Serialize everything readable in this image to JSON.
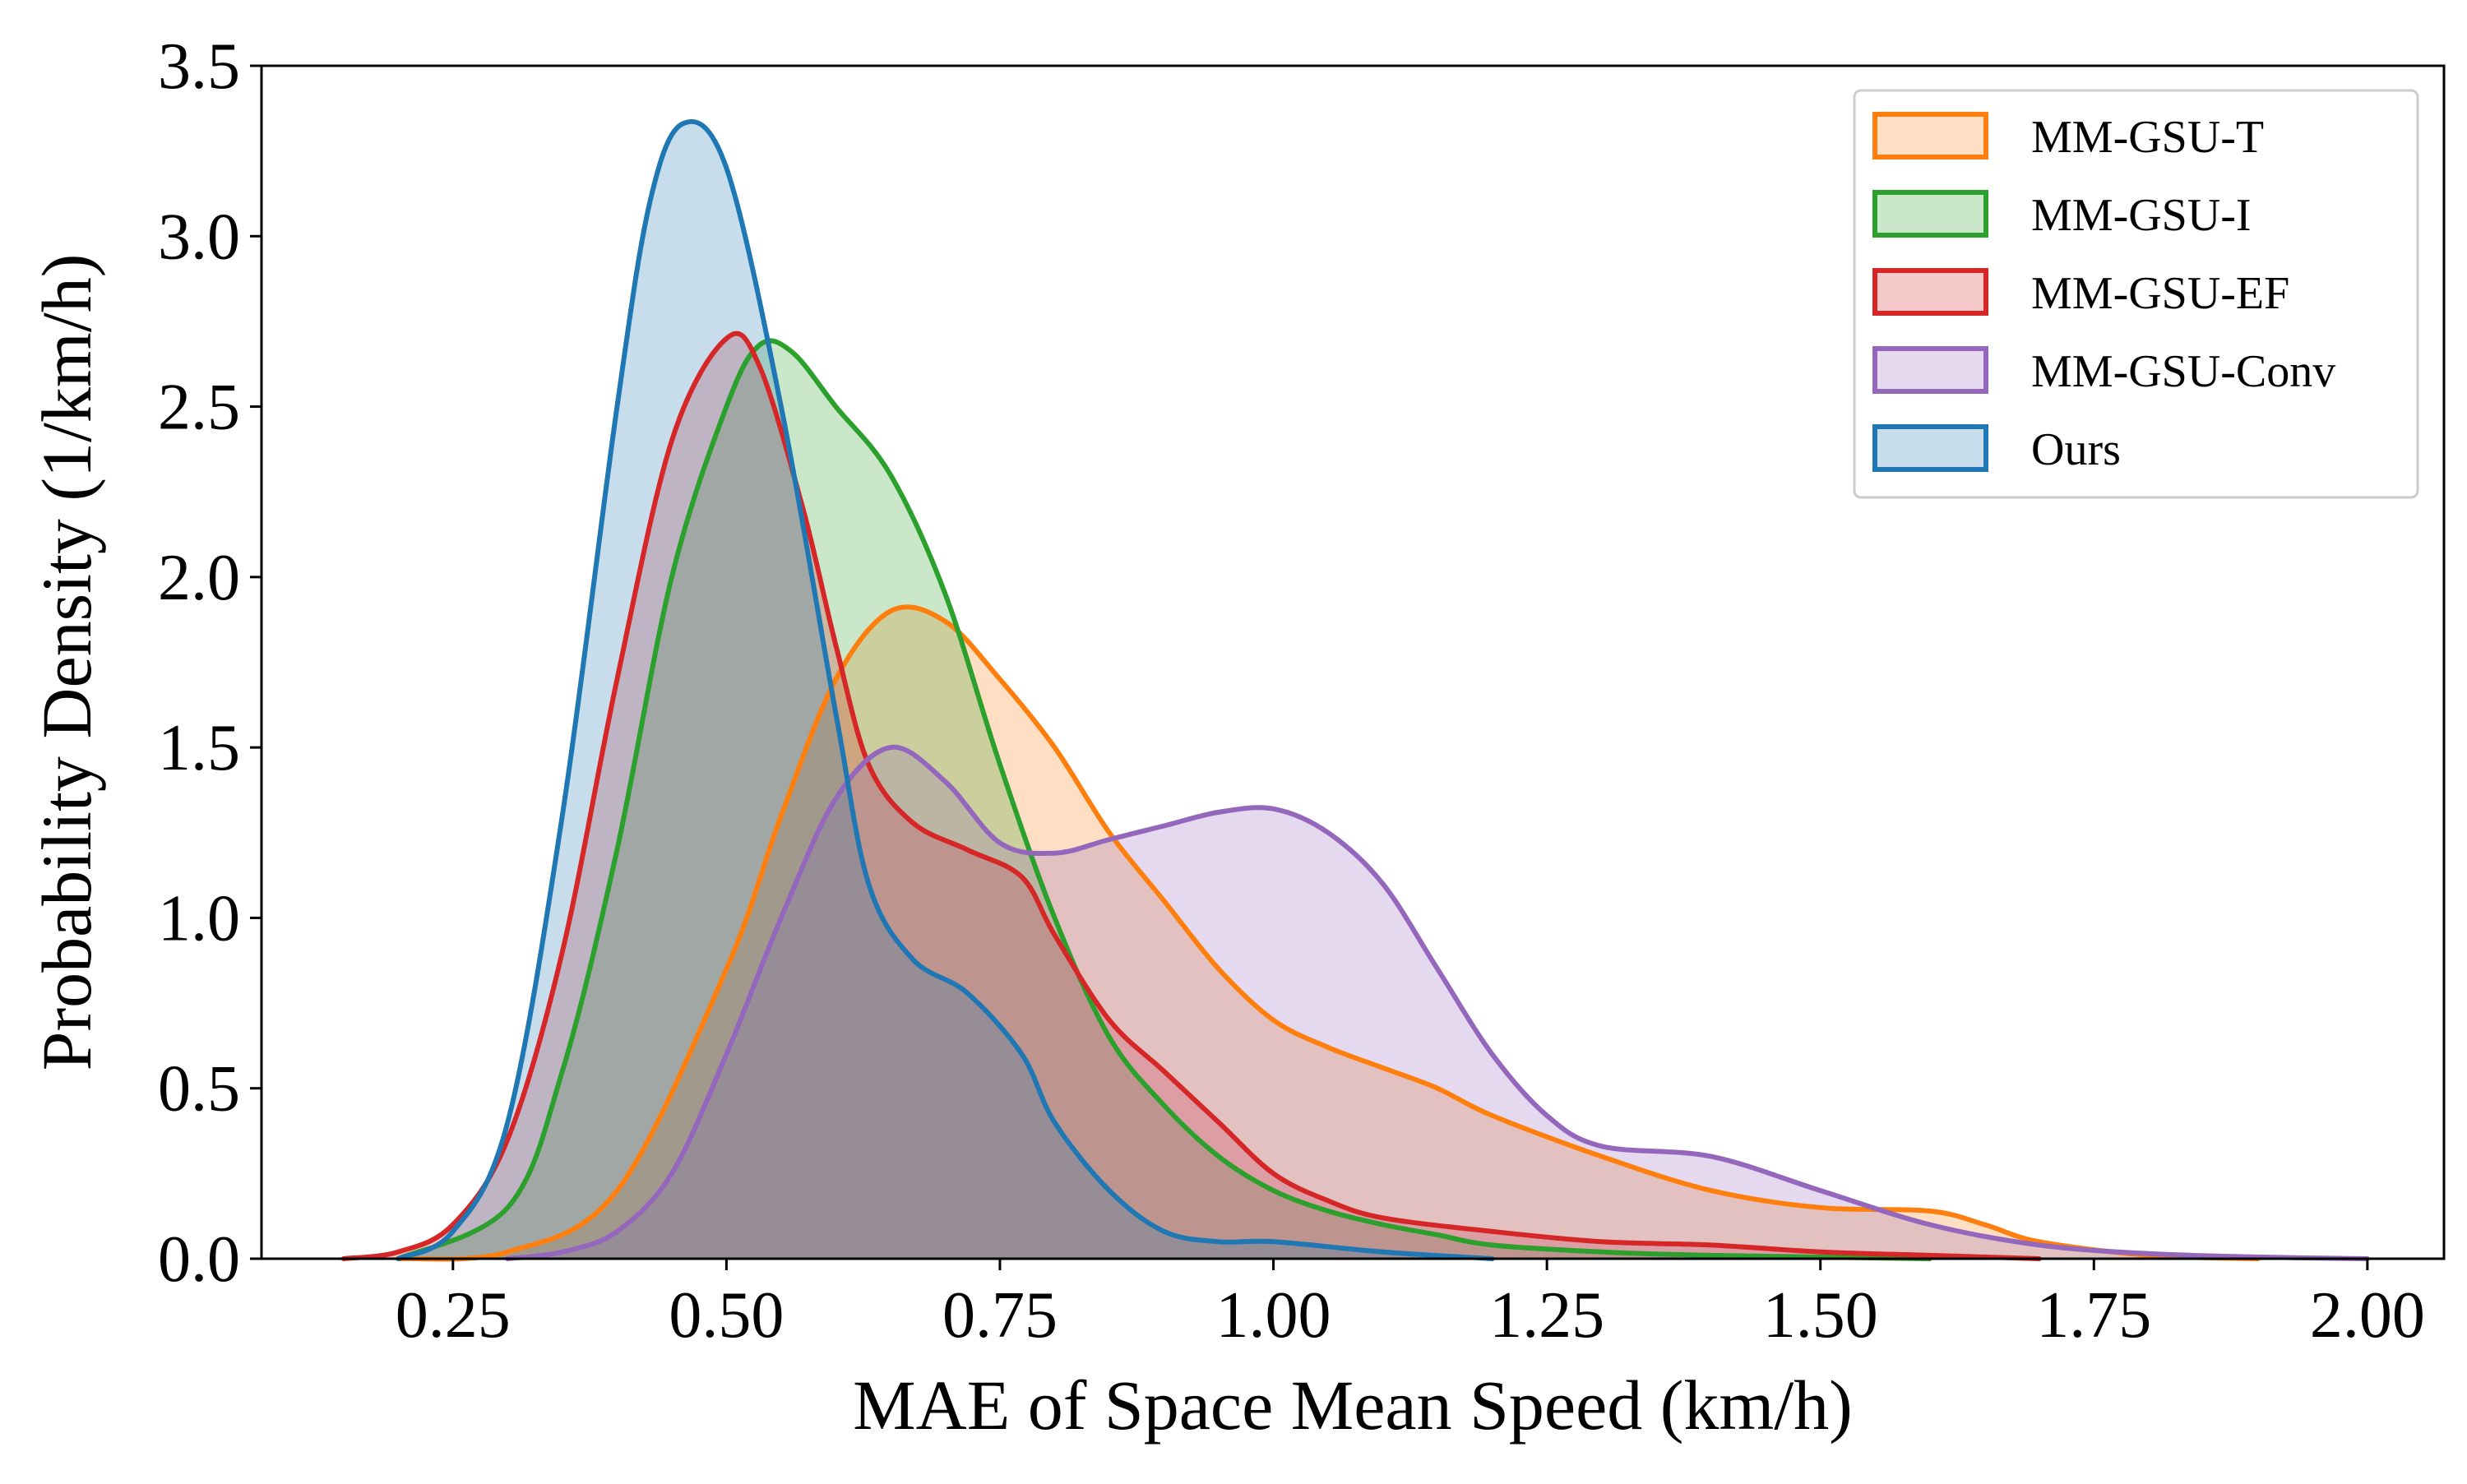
{
  "chart_data": {
    "type": "area",
    "title": "",
    "xlabel": "MAE of Space Mean Speed (km/h)",
    "ylabel": "Probability Density (1/km/h)",
    "xlim": [
      0.075,
      2.07
    ],
    "ylim": [
      0,
      3.5
    ],
    "xticks": [
      0.25,
      0.5,
      0.75,
      1.0,
      1.25,
      1.5,
      1.75,
      2.0
    ],
    "xtick_labels": [
      "0.25",
      "0.50",
      "0.75",
      "1.00",
      "1.25",
      "1.50",
      "1.75",
      "2.00"
    ],
    "yticks": [
      0,
      0.5,
      1.0,
      1.5,
      2.0,
      2.5,
      3.0,
      3.5
    ],
    "ytick_labels": [
      "0.0",
      "0.5",
      "1.0",
      "1.5",
      "2.0",
      "2.5",
      "3.0",
      "3.5"
    ],
    "grid": false,
    "legend_position": "top-right",
    "series": [
      {
        "name": "MM-GSU-T",
        "color": "#ff7f0e",
        "points": [
          [
            0.2,
            0.0
          ],
          [
            0.3,
            0.02
          ],
          [
            0.4,
            0.2
          ],
          [
            0.5,
            0.85
          ],
          [
            0.55,
            1.3
          ],
          [
            0.6,
            1.7
          ],
          [
            0.65,
            1.9
          ],
          [
            0.7,
            1.87
          ],
          [
            0.75,
            1.7
          ],
          [
            0.8,
            1.5
          ],
          [
            0.85,
            1.25
          ],
          [
            0.9,
            1.05
          ],
          [
            0.95,
            0.85
          ],
          [
            1.0,
            0.7
          ],
          [
            1.05,
            0.62
          ],
          [
            1.1,
            0.56
          ],
          [
            1.15,
            0.5
          ],
          [
            1.2,
            0.42
          ],
          [
            1.3,
            0.3
          ],
          [
            1.4,
            0.2
          ],
          [
            1.5,
            0.15
          ],
          [
            1.6,
            0.14
          ],
          [
            1.65,
            0.1
          ],
          [
            1.7,
            0.05
          ],
          [
            1.8,
            0.01
          ],
          [
            1.9,
            0.0
          ]
        ]
      },
      {
        "name": "MM-GSU-I",
        "color": "#2ca02c",
        "points": [
          [
            0.2,
            0.0
          ],
          [
            0.3,
            0.15
          ],
          [
            0.35,
            0.55
          ],
          [
            0.4,
            1.2
          ],
          [
            0.45,
            2.0
          ],
          [
            0.5,
            2.5
          ],
          [
            0.53,
            2.68
          ],
          [
            0.56,
            2.66
          ],
          [
            0.6,
            2.5
          ],
          [
            0.65,
            2.3
          ],
          [
            0.7,
            1.95
          ],
          [
            0.75,
            1.45
          ],
          [
            0.8,
            1.0
          ],
          [
            0.85,
            0.65
          ],
          [
            0.9,
            0.45
          ],
          [
            0.95,
            0.3
          ],
          [
            1.0,
            0.2
          ],
          [
            1.05,
            0.14
          ],
          [
            1.1,
            0.1
          ],
          [
            1.15,
            0.07
          ],
          [
            1.2,
            0.04
          ],
          [
            1.3,
            0.02
          ],
          [
            1.4,
            0.01
          ],
          [
            1.6,
            0.0
          ]
        ]
      },
      {
        "name": "MM-GSU-EF",
        "color": "#d62728",
        "points": [
          [
            0.15,
            0.0
          ],
          [
            0.2,
            0.02
          ],
          [
            0.25,
            0.1
          ],
          [
            0.3,
            0.35
          ],
          [
            0.35,
            0.9
          ],
          [
            0.4,
            1.7
          ],
          [
            0.45,
            2.4
          ],
          [
            0.5,
            2.7
          ],
          [
            0.53,
            2.62
          ],
          [
            0.57,
            2.2
          ],
          [
            0.6,
            1.8
          ],
          [
            0.63,
            1.45
          ],
          [
            0.67,
            1.28
          ],
          [
            0.72,
            1.2
          ],
          [
            0.77,
            1.12
          ],
          [
            0.8,
            0.95
          ],
          [
            0.85,
            0.7
          ],
          [
            0.9,
            0.55
          ],
          [
            0.95,
            0.4
          ],
          [
            1.0,
            0.25
          ],
          [
            1.05,
            0.17
          ],
          [
            1.1,
            0.12
          ],
          [
            1.2,
            0.08
          ],
          [
            1.3,
            0.05
          ],
          [
            1.4,
            0.04
          ],
          [
            1.5,
            0.02
          ],
          [
            1.6,
            0.01
          ],
          [
            1.7,
            0.0
          ]
        ]
      },
      {
        "name": "MM-GSU-Conv",
        "color": "#9467bd",
        "points": [
          [
            0.3,
            0.0
          ],
          [
            0.35,
            0.02
          ],
          [
            0.4,
            0.08
          ],
          [
            0.45,
            0.25
          ],
          [
            0.5,
            0.6
          ],
          [
            0.55,
            1.0
          ],
          [
            0.6,
            1.35
          ],
          [
            0.65,
            1.5
          ],
          [
            0.7,
            1.4
          ],
          [
            0.75,
            1.22
          ],
          [
            0.8,
            1.19
          ],
          [
            0.85,
            1.23
          ],
          [
            0.9,
            1.27
          ],
          [
            0.95,
            1.31
          ],
          [
            1.0,
            1.32
          ],
          [
            1.05,
            1.25
          ],
          [
            1.1,
            1.1
          ],
          [
            1.15,
            0.85
          ],
          [
            1.2,
            0.6
          ],
          [
            1.25,
            0.42
          ],
          [
            1.3,
            0.33
          ],
          [
            1.4,
            0.3
          ],
          [
            1.5,
            0.2
          ],
          [
            1.6,
            0.1
          ],
          [
            1.7,
            0.04
          ],
          [
            1.8,
            0.015
          ],
          [
            1.9,
            0.005
          ],
          [
            2.0,
            0.0
          ]
        ]
      },
      {
        "name": "Ours",
        "color": "#1f77b4",
        "points": [
          [
            0.2,
            0.0
          ],
          [
            0.25,
            0.08
          ],
          [
            0.3,
            0.4
          ],
          [
            0.35,
            1.3
          ],
          [
            0.4,
            2.5
          ],
          [
            0.43,
            3.1
          ],
          [
            0.46,
            3.33
          ],
          [
            0.5,
            3.2
          ],
          [
            0.55,
            2.5
          ],
          [
            0.6,
            1.6
          ],
          [
            0.63,
            1.1
          ],
          [
            0.67,
            0.88
          ],
          [
            0.72,
            0.78
          ],
          [
            0.77,
            0.6
          ],
          [
            0.8,
            0.4
          ],
          [
            0.85,
            0.2
          ],
          [
            0.9,
            0.08
          ],
          [
            0.95,
            0.05
          ],
          [
            1.0,
            0.05
          ],
          [
            1.1,
            0.02
          ],
          [
            1.2,
            0.0
          ]
        ]
      }
    ]
  }
}
